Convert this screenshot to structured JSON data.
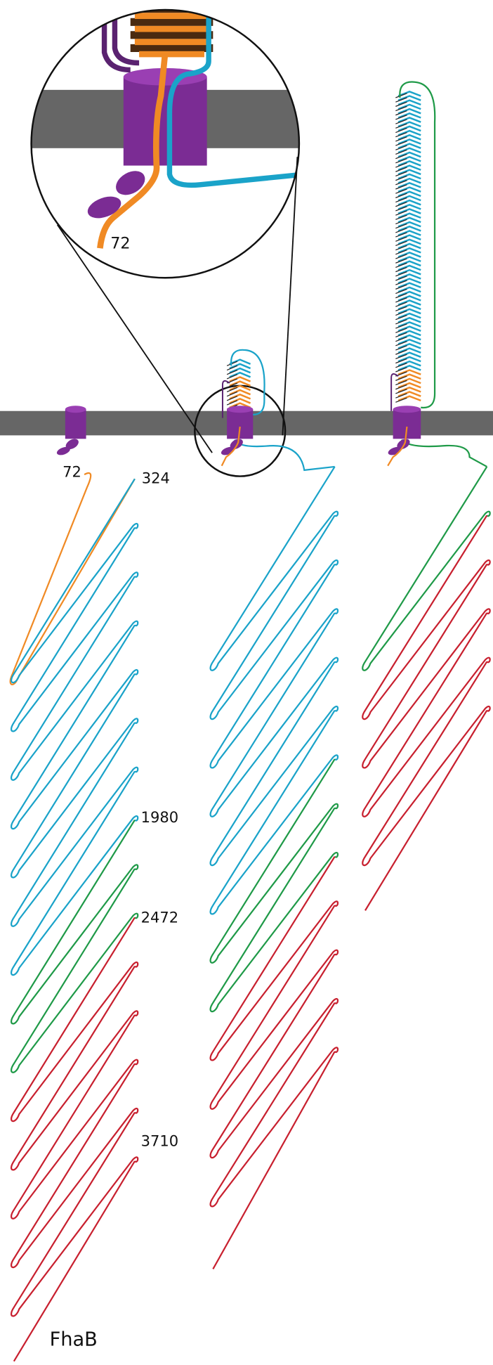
{
  "zoom_inset": {
    "label": "72"
  },
  "annotations": {
    "start": "72",
    "residue_324": "324",
    "residue_1980": "1980",
    "residue_2472": "2472",
    "residue_3710": "3710"
  },
  "protein": {
    "name": "FhaB"
  }
}
